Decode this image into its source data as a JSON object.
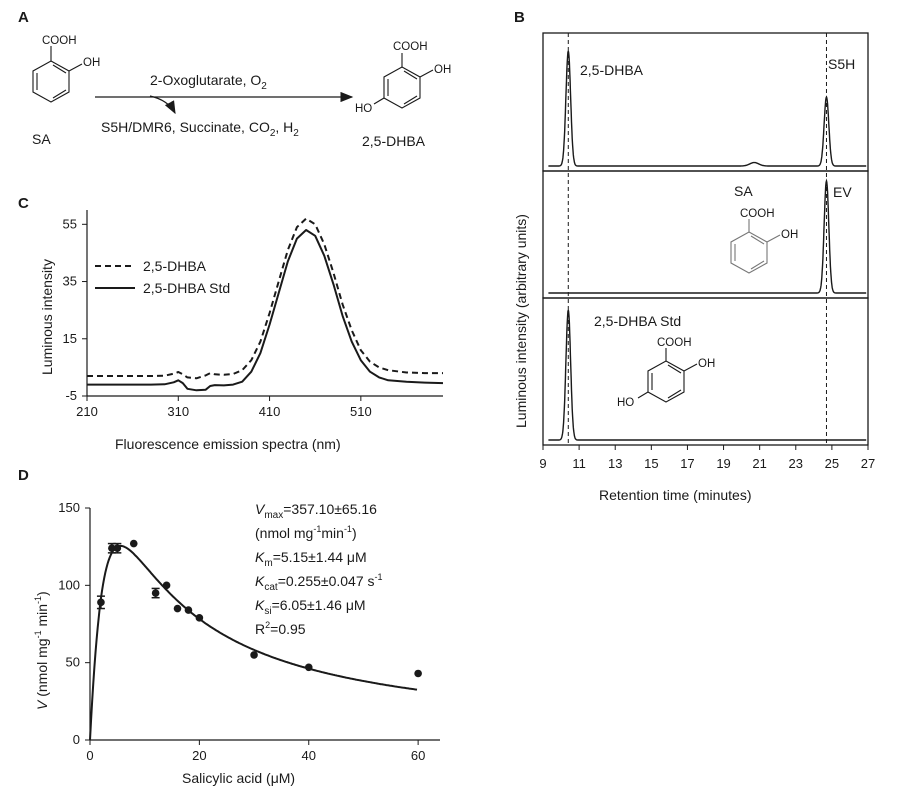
{
  "panel_letters": {
    "a": "A",
    "b": "B",
    "c": "C",
    "d": "D"
  },
  "panel_a": {
    "reactant_cooh": "COOH",
    "reactant_oh": "OH",
    "reactant_label": "SA",
    "conditions_top_main": "2-Oxoglutarate, O",
    "conditions_top_sub": "2",
    "conditions_bottom_main": "S5H/DMR6, Succinate, CO",
    "conditions_bottom_sub1": "2",
    "conditions_bottom_sep": ", H",
    "conditions_bottom_sub2": "2",
    "product_cooh": "COOH",
    "product_oh": "OH",
    "product_ho": "HO",
    "product_label": "2,5-DHBA"
  },
  "chart_data": [
    {
      "panel": "B",
      "type": "line",
      "xlabel": "Retention  time (minutes)",
      "ylabel": "Luminous intensity (arbitrary  units)",
      "xlim": [
        9,
        27
      ],
      "xticks": [
        9,
        11,
        13,
        15,
        17,
        19,
        21,
        23,
        25,
        27
      ],
      "reference_lines_x": [
        10.4,
        24.7
      ],
      "subpanels": [
        {
          "label": "2,5-DHBA",
          "side_label": "S5H",
          "peaks": [
            {
              "rt": 10.4,
              "height": 1.0
            },
            {
              "rt": 24.7,
              "height": 0.6
            },
            {
              "rt": 20.7,
              "height": 0.03
            }
          ]
        },
        {
          "label": "SA",
          "side_label": "EV",
          "structure_cooh": "COOH",
          "structure_oh": "OH",
          "peaks": [
            {
              "rt": 24.7,
              "height": 1.0
            }
          ]
        },
        {
          "label": "2,5-DHBA Std",
          "structure_cooh": "COOH",
          "structure_oh": "OH",
          "structure_ho": "HO",
          "peaks": [
            {
              "rt": 10.4,
              "height": 1.0
            }
          ]
        }
      ]
    },
    {
      "panel": "C",
      "type": "line",
      "xlabel": "Fluorescence emission spectra (nm)",
      "ylabel": "Luminous intensity",
      "xlim": [
        210,
        600
      ],
      "ylim": [
        -5,
        60
      ],
      "xticks": [
        210,
        310,
        410,
        510
      ],
      "yticks": [
        -5,
        15,
        35,
        55
      ],
      "series": [
        {
          "name": "2,5-DHBA",
          "style": "dashed",
          "x": [
            210,
            250,
            280,
            295,
            305,
            310,
            315,
            320,
            330,
            340,
            345,
            350,
            360,
            370,
            380,
            390,
            400,
            410,
            420,
            430,
            440,
            450,
            460,
            470,
            480,
            490,
            500,
            510,
            520,
            530,
            540,
            560,
            580,
            600
          ],
          "y": [
            2,
            2,
            2,
            2.1,
            2.8,
            3.4,
            2.6,
            1.5,
            1.2,
            2.2,
            3.0,
            2.6,
            2.4,
            2.7,
            4,
            7.5,
            14,
            24,
            35,
            46,
            54,
            57,
            55,
            48,
            38,
            27,
            18,
            11,
            7,
            5,
            4,
            3.2,
            3,
            3
          ]
        },
        {
          "name": "2,5-DHBA Std",
          "style": "solid",
          "x": [
            210,
            250,
            280,
            295,
            305,
            310,
            315,
            320,
            330,
            340,
            345,
            350,
            360,
            370,
            380,
            390,
            400,
            410,
            420,
            430,
            440,
            450,
            460,
            470,
            480,
            490,
            500,
            510,
            520,
            530,
            540,
            560,
            580,
            600
          ],
          "y": [
            -1,
            -1,
            -1,
            -0.9,
            -0.2,
            0.5,
            -0.5,
            -2.5,
            -3,
            -2.8,
            -1.5,
            -1.2,
            -1.3,
            -1,
            0,
            3.5,
            10,
            20,
            31,
            42,
            50,
            53,
            51,
            44,
            34,
            23,
            14,
            7.5,
            3.5,
            1.5,
            0.5,
            0,
            -0.3,
            -0.5
          ]
        }
      ]
    },
    {
      "panel": "D",
      "type": "scatter",
      "xlabel": "Salicylic acid (μM)",
      "ylabel_parts": {
        "v": "V",
        "rest": " (nmol mg",
        "sup1": "-1",
        "mid": " min",
        "sup2": "-1",
        "end": ")"
      },
      "xlim": [
        0,
        64
      ],
      "ylim": [
        0,
        150
      ],
      "xticks": [
        0,
        20,
        40,
        60
      ],
      "yticks": [
        0,
        50,
        100,
        150
      ],
      "points": [
        {
          "x": 2,
          "y": 89,
          "err": 4
        },
        {
          "x": 4,
          "y": 124,
          "err": 3
        },
        {
          "x": 5,
          "y": 124,
          "err": 3
        },
        {
          "x": 8,
          "y": 127,
          "err": 0
        },
        {
          "x": 12,
          "y": 95,
          "err": 3
        },
        {
          "x": 14,
          "y": 100,
          "err": 0
        },
        {
          "x": 16,
          "y": 85,
          "err": 0
        },
        {
          "x": 18,
          "y": 84,
          "err": 0
        },
        {
          "x": 20,
          "y": 79,
          "err": 0
        },
        {
          "x": 30,
          "y": 55,
          "err": 0
        },
        {
          "x": 40,
          "y": 47,
          "err": 0
        },
        {
          "x": 60,
          "y": 43,
          "err": 0
        }
      ],
      "fit_curve": {
        "model": "substrate inhibition",
        "Vmax": 357.1,
        "Km": 5.15,
        "Ksi": 6.05,
        "x_end": 60
      },
      "annotations": {
        "vmax_sym": "V",
        "vmax_sub": "max",
        "vmax_val": "=357.10±65.16",
        "units_a": "(nmol mg",
        "units_sup1": "-1",
        "units_b": "min",
        "units_sup2": "-1",
        "units_c": ")",
        "km_sym": "K",
        "km_sub": "m",
        "km_val": "=5.15±1.44 μM",
        "kcat_sym": "K",
        "kcat_sub": "cat",
        "kcat_val": "=0.255±0.047 s",
        "kcat_sup": "-1",
        "ksi_sym": "K",
        "ksi_sub": "si",
        "ksi_val": "=6.05±1.46 μM",
        "r2_a": "R",
        "r2_sup": "2",
        "r2_b": "=0.95"
      }
    }
  ]
}
